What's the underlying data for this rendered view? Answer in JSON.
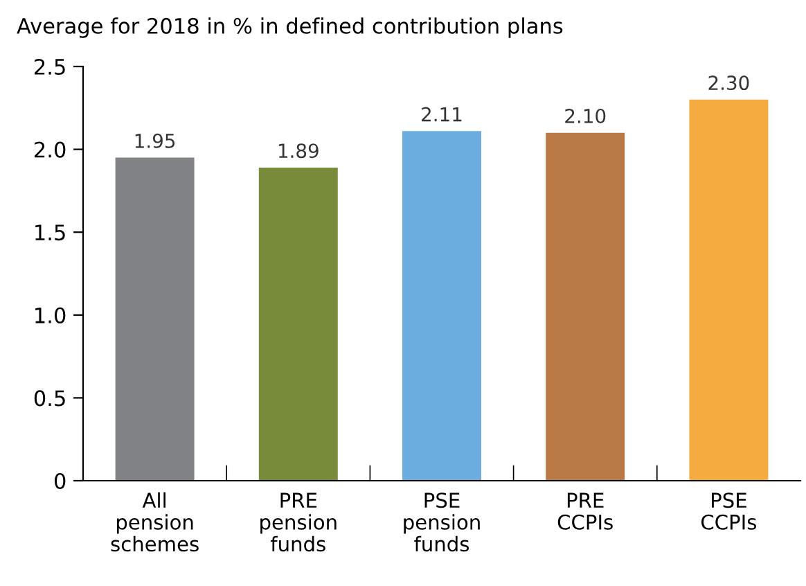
{
  "chart_data": {
    "type": "bar",
    "title": "Average for 2018 in % in defined contribution plans",
    "categories": [
      "All\npension\nschemes",
      "PRE\npension\nfunds",
      "PSE\npension\nfunds",
      "PRE\nCCPIs",
      "PSE\nCCPIs"
    ],
    "values": [
      1.95,
      1.89,
      2.11,
      2.1,
      2.3
    ],
    "value_labels": [
      "1.95",
      "1.89",
      "2.11",
      "2.10",
      "2.30"
    ],
    "colors": [
      "#818286",
      "#778b3a",
      "#6badde",
      "#b97a47",
      "#f5ab3f"
    ],
    "ylim": [
      0,
      2.5
    ],
    "yticks": [
      0,
      0.5,
      {
        "value": 1,
        "label": "1.0"
      },
      1.5,
      {
        "value": 2,
        "label": "2.0"
      },
      2.5
    ],
    "grid": false
  }
}
